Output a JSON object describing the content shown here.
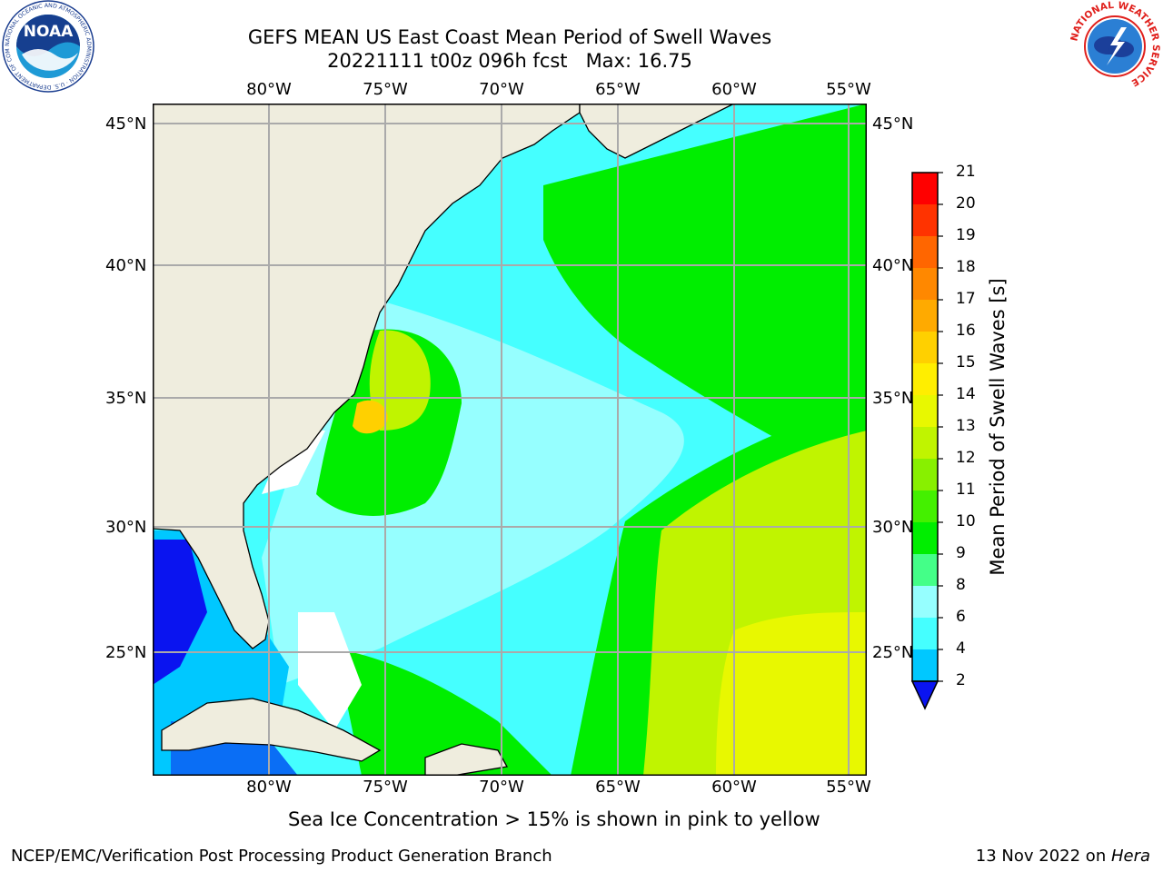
{
  "header": {
    "title_line1": "GEFS MEAN US East Coast Mean Period of Swell Waves",
    "title_line2": "20221111 t00z 096h fcst   Max: 16.75"
  },
  "logos": {
    "noaa_text": "NOAA",
    "noaa_ring_text": "NATIONAL OCEANIC AND ATMOSPHERIC ADMINISTRATION · U.S. DEPARTMENT OF COMMERCE",
    "nws_ring_text": "NATIONAL WEATHER SERVICE"
  },
  "map": {
    "lon_labels": [
      "80°W",
      "75°W",
      "70°W",
      "65°W",
      "60°W",
      "55°W"
    ],
    "lat_labels": [
      "45°N",
      "40°N",
      "35°N",
      "30°N",
      "25°N"
    ],
    "land_color": "#efedde",
    "ocean_base_color": "#45ffff"
  },
  "colorbar": {
    "title": "Mean Period of Swell Waves [s]",
    "ticks": [
      "2",
      "4",
      "6",
      "8",
      "9",
      "10",
      "11",
      "12",
      "13",
      "14",
      "15",
      "16",
      "17",
      "18",
      "19",
      "20",
      "21"
    ],
    "colors": [
      "#0a6ef5",
      "#00c8ff",
      "#45ffff",
      "#96ffff",
      "#44ff88",
      "#00ee00",
      "#44f000",
      "#88f000",
      "#c0f400",
      "#e8f800",
      "#ffee00",
      "#ffd000",
      "#ffaa00",
      "#ff8800",
      "#ff6600",
      "#ff3300",
      "#ff0000"
    ],
    "under_color": "#0a14f0"
  },
  "notes": {
    "sea_ice": "Sea Ice Concentration > 15% is shown in pink to yellow",
    "credit": "NCEP/EMC/Verification Post Processing Product Generation Branch",
    "date_prefix": "13 Nov 2022 on ",
    "date_host": "Hera"
  }
}
